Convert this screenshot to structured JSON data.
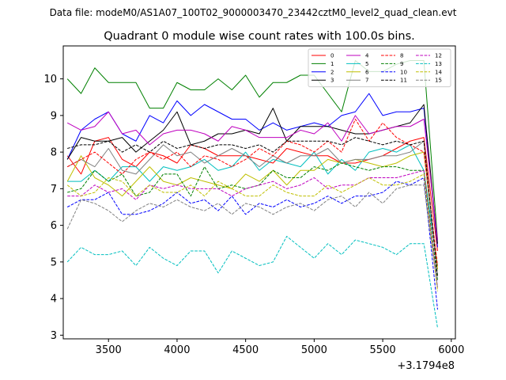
{
  "suptitle": "Data file: modeM0/AS1A07_100T02_9000003470_23442cztM0_level2_quad_clean.evt",
  "chart_data": {
    "type": "line",
    "title": "Quadrant 0 module wise count rates with 100.0s bins.",
    "xlabel": "",
    "ylabel": "",
    "x_offset_label": "+3.1794e8",
    "xlim": [
      3170,
      6030
    ],
    "ylim": [
      2.9,
      10.9
    ],
    "xticks": [
      3500,
      4000,
      4500,
      5000,
      5500,
      6000
    ],
    "yticks": [
      3,
      4,
      5,
      6,
      7,
      8,
      9,
      10
    ],
    "grid": false,
    "legend": {
      "placement": "top-right",
      "ncol": 4
    },
    "x": [
      3200,
      3300,
      3400,
      3500,
      3600,
      3700,
      3800,
      3900,
      4000,
      4100,
      4200,
      4300,
      4400,
      4500,
      4600,
      4700,
      4800,
      4900,
      5000,
      5100,
      5200,
      5300,
      5400,
      5500,
      5600,
      5700,
      5800,
      5900
    ],
    "series": [
      {
        "name": "0",
        "color": "#ff0000",
        "dash": "solid",
        "values": [
          7.9,
          7.4,
          8.3,
          8.4,
          7.8,
          7.6,
          8.0,
          7.9,
          7.7,
          8.2,
          8.1,
          7.9,
          7.9,
          7.9,
          7.8,
          7.7,
          8.1,
          8.0,
          7.9,
          7.9,
          7.7,
          7.7,
          7.8,
          7.9,
          8.1,
          8.3,
          8.4,
          5.3
        ]
      },
      {
        "name": "1",
        "color": "#008000",
        "dash": "solid",
        "values": [
          10.0,
          9.6,
          10.3,
          9.9,
          9.9,
          9.9,
          9.2,
          9.2,
          9.9,
          9.7,
          9.7,
          10.0,
          9.7,
          10.1,
          9.5,
          9.9,
          9.9,
          10.1,
          10.1,
          9.6,
          9.1,
          10.5,
          10.2,
          10.2,
          10.4,
          10.5,
          10.5,
          5.6
        ]
      },
      {
        "name": "2",
        "color": "#0000ff",
        "dash": "solid",
        "values": [
          7.8,
          8.6,
          8.9,
          9.1,
          8.5,
          8.3,
          9.0,
          8.8,
          9.4,
          9.0,
          9.3,
          9.1,
          8.9,
          8.9,
          8.6,
          8.8,
          8.6,
          8.7,
          8.8,
          8.7,
          9.0,
          9.1,
          9.6,
          9.0,
          9.1,
          9.1,
          9.2,
          5.4
        ]
      },
      {
        "name": "3",
        "color": "#000000",
        "dash": "solid",
        "values": [
          7.8,
          8.4,
          8.3,
          8.3,
          8.4,
          8.0,
          8.3,
          8.6,
          9.1,
          8.2,
          8.3,
          8.5,
          8.5,
          8.6,
          8.5,
          9.2,
          8.3,
          8.7,
          8.7,
          8.7,
          8.6,
          8.5,
          8.5,
          8.6,
          8.7,
          8.8,
          9.3,
          5.5
        ]
      },
      {
        "name": "4",
        "color": "#bf00bf",
        "dash": "solid",
        "values": [
          8.8,
          8.6,
          8.7,
          9.1,
          8.5,
          8.6,
          8.2,
          8.5,
          8.6,
          8.6,
          8.5,
          8.3,
          8.7,
          8.6,
          8.4,
          8.4,
          8.4,
          8.6,
          8.5,
          8.8,
          8.3,
          9.0,
          8.5,
          8.6,
          8.7,
          8.7,
          8.9,
          5.6
        ]
      },
      {
        "name": "5",
        "color": "#00bfbf",
        "dash": "solid",
        "values": [
          7.2,
          7.2,
          7.5,
          7.2,
          7.6,
          7.6,
          7.2,
          7.6,
          7.5,
          7.6,
          7.8,
          7.5,
          7.6,
          8.0,
          7.5,
          7.8,
          7.7,
          7.6,
          8.0,
          7.4,
          7.8,
          7.5,
          8.0,
          8.1,
          8.0,
          8.2,
          7.5,
          4.9
        ]
      },
      {
        "name": "6",
        "color": "#bfbf00",
        "dash": "solid",
        "values": [
          7.2,
          7.9,
          7.3,
          7.1,
          6.8,
          7.2,
          7.6,
          7.2,
          7.1,
          7.3,
          7.2,
          7.1,
          7.0,
          7.4,
          7.2,
          7.5,
          7.1,
          7.5,
          7.5,
          7.8,
          7.7,
          7.8,
          7.7,
          7.6,
          7.7,
          7.9,
          8.0,
          4.8
        ]
      },
      {
        "name": "7",
        "color": "#808080",
        "dash": "solid",
        "values": [
          7.6,
          7.8,
          7.6,
          8.1,
          7.5,
          7.4,
          7.8,
          8.2,
          7.9,
          8.0,
          7.7,
          7.9,
          8.1,
          7.9,
          7.6,
          7.9,
          7.7,
          7.9,
          7.9,
          8.1,
          7.7,
          7.8,
          7.8,
          7.9,
          7.9,
          8.0,
          8.3,
          4.6
        ]
      },
      {
        "name": "8",
        "color": "#ff0000",
        "dash": "dashed",
        "values": [
          7.6,
          7.8,
          8.0,
          7.7,
          7.4,
          7.8,
          8.0,
          7.8,
          8.0,
          7.6,
          7.9,
          7.8,
          7.6,
          7.8,
          8.1,
          7.9,
          8.3,
          8.2,
          8.0,
          8.3,
          8.0,
          8.9,
          8.3,
          8.8,
          8.4,
          8.2,
          8.0,
          4.9
        ]
      },
      {
        "name": "9",
        "color": "#008000",
        "dash": "dashed",
        "values": [
          6.9,
          7.0,
          7.5,
          7.2,
          7.4,
          6.8,
          6.9,
          7.4,
          7.4,
          6.8,
          7.6,
          7.0,
          7.1,
          7.0,
          7.1,
          7.5,
          7.3,
          7.3,
          7.6,
          7.5,
          7.7,
          7.6,
          7.5,
          7.6,
          7.6,
          7.5,
          7.5,
          4.5
        ]
      },
      {
        "name": "10",
        "color": "#0000ff",
        "dash": "dashed",
        "values": [
          6.5,
          6.7,
          6.7,
          6.9,
          6.3,
          6.3,
          6.4,
          6.6,
          6.9,
          6.6,
          6.7,
          6.4,
          6.8,
          6.3,
          6.6,
          6.5,
          6.7,
          6.5,
          6.6,
          6.8,
          6.6,
          6.8,
          6.8,
          6.9,
          7.2,
          7.1,
          7.3,
          3.7
        ]
      },
      {
        "name": "11",
        "color": "#000000",
        "dash": "dashed",
        "values": [
          8.1,
          8.2,
          8.2,
          8.3,
          8.0,
          8.2,
          8.0,
          8.3,
          8.1,
          8.2,
          8.1,
          8.2,
          8.2,
          8.1,
          8.2,
          8.0,
          8.3,
          8.3,
          8.3,
          8.3,
          8.2,
          8.4,
          8.3,
          8.2,
          8.3,
          8.2,
          8.3,
          4.6
        ]
      },
      {
        "name": "12",
        "color": "#bf00bf",
        "dash": "dashed",
        "values": [
          6.8,
          6.8,
          7.1,
          6.9,
          7.0,
          6.7,
          7.1,
          7.0,
          7.1,
          7.0,
          7.0,
          7.0,
          6.8,
          7.0,
          7.1,
          7.2,
          7.0,
          7.1,
          7.3,
          7.0,
          7.1,
          7.1,
          7.3,
          7.3,
          7.3,
          7.4,
          7.5,
          4.3
        ]
      },
      {
        "name": "13",
        "color": "#00bfbf",
        "dash": "dashed",
        "values": [
          5.0,
          5.4,
          5.2,
          5.2,
          5.3,
          4.9,
          5.4,
          5.1,
          4.9,
          5.3,
          5.3,
          4.7,
          5.3,
          5.1,
          4.9,
          5.0,
          5.7,
          5.4,
          5.1,
          5.5,
          5.2,
          5.6,
          5.5,
          5.4,
          5.2,
          5.5,
          5.5,
          3.2
        ]
      },
      {
        "name": "14",
        "color": "#bfbf00",
        "dash": "dashed",
        "values": [
          7.1,
          6.8,
          6.9,
          7.3,
          7.2,
          6.8,
          7.1,
          6.9,
          6.9,
          7.1,
          6.8,
          7.2,
          7.0,
          6.8,
          6.8,
          7.1,
          6.9,
          6.8,
          6.8,
          7.1,
          6.9,
          7.1,
          7.3,
          7.1,
          7.1,
          7.2,
          7.4,
          4.2
        ]
      },
      {
        "name": "15",
        "color": "#808080",
        "dash": "dashed",
        "values": [
          5.9,
          6.7,
          6.6,
          6.4,
          6.1,
          6.4,
          6.6,
          6.5,
          6.7,
          6.5,
          6.4,
          6.6,
          6.3,
          6.6,
          6.5,
          6.3,
          6.5,
          6.6,
          6.4,
          6.7,
          6.8,
          6.5,
          6.9,
          6.6,
          7.0,
          7.1,
          7.1,
          4.3
        ]
      }
    ]
  }
}
